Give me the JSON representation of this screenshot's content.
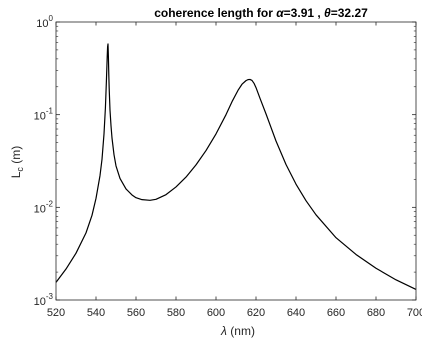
{
  "chart_data": {
    "type": "line",
    "title": "coherence length for α=3.91 , θ=32.27",
    "xlabel": "λ (nm)",
    "ylabel": "L_c (m)",
    "xscale": "linear",
    "yscale": "log",
    "xlim": [
      520,
      700
    ],
    "ylim": [
      0.001,
      1
    ],
    "grid": false,
    "x_ticks": [
      {
        "value": 520,
        "label": "520"
      },
      {
        "value": 540,
        "label": "540"
      },
      {
        "value": 560,
        "label": "560"
      },
      {
        "value": 580,
        "label": "580"
      },
      {
        "value": 600,
        "label": "600"
      },
      {
        "value": 620,
        "label": "620"
      },
      {
        "value": 640,
        "label": "640"
      },
      {
        "value": 660,
        "label": "660"
      },
      {
        "value": 680,
        "label": "680"
      },
      {
        "value": 700,
        "label": "700"
      }
    ],
    "y_ticks": [
      {
        "value": 0.001,
        "base": "10",
        "exp": "-3"
      },
      {
        "value": 0.01,
        "base": "10",
        "exp": "-2"
      },
      {
        "value": 0.1,
        "base": "10",
        "exp": "-1"
      },
      {
        "value": 1,
        "base": "10",
        "exp": "0"
      }
    ],
    "series": [
      {
        "color": "#000000",
        "x": [
          520,
          525,
          530,
          535,
          538,
          540,
          542,
          543,
          544,
          544.7,
          545.2,
          545.6,
          545.8,
          546,
          546.2,
          546.4,
          546.6,
          547,
          547.5,
          548,
          549,
          550,
          552,
          555,
          558,
          560,
          563,
          567,
          570,
          575,
          580,
          585,
          590,
          595,
          600,
          605,
          608,
          611,
          613,
          615,
          616,
          617,
          618,
          619,
          620,
          622,
          625,
          630,
          635,
          640,
          645,
          650,
          660,
          670,
          680,
          690,
          700
        ],
        "y": [
          0.00155,
          0.00216,
          0.0032,
          0.0053,
          0.0082,
          0.0125,
          0.022,
          0.033,
          0.062,
          0.118,
          0.23,
          0.42,
          0.54,
          0.58,
          0.42,
          0.27,
          0.19,
          0.112,
          0.076,
          0.056,
          0.037,
          0.028,
          0.0205,
          0.0158,
          0.0136,
          0.0127,
          0.0121,
          0.0119,
          0.0122,
          0.0137,
          0.0166,
          0.0212,
          0.0287,
          0.041,
          0.062,
          0.1,
          0.138,
          0.183,
          0.213,
          0.233,
          0.239,
          0.24,
          0.234,
          0.218,
          0.196,
          0.15,
          0.102,
          0.052,
          0.029,
          0.0178,
          0.0118,
          0.0083,
          0.0047,
          0.0031,
          0.0022,
          0.00165,
          0.0013
        ]
      }
    ]
  }
}
